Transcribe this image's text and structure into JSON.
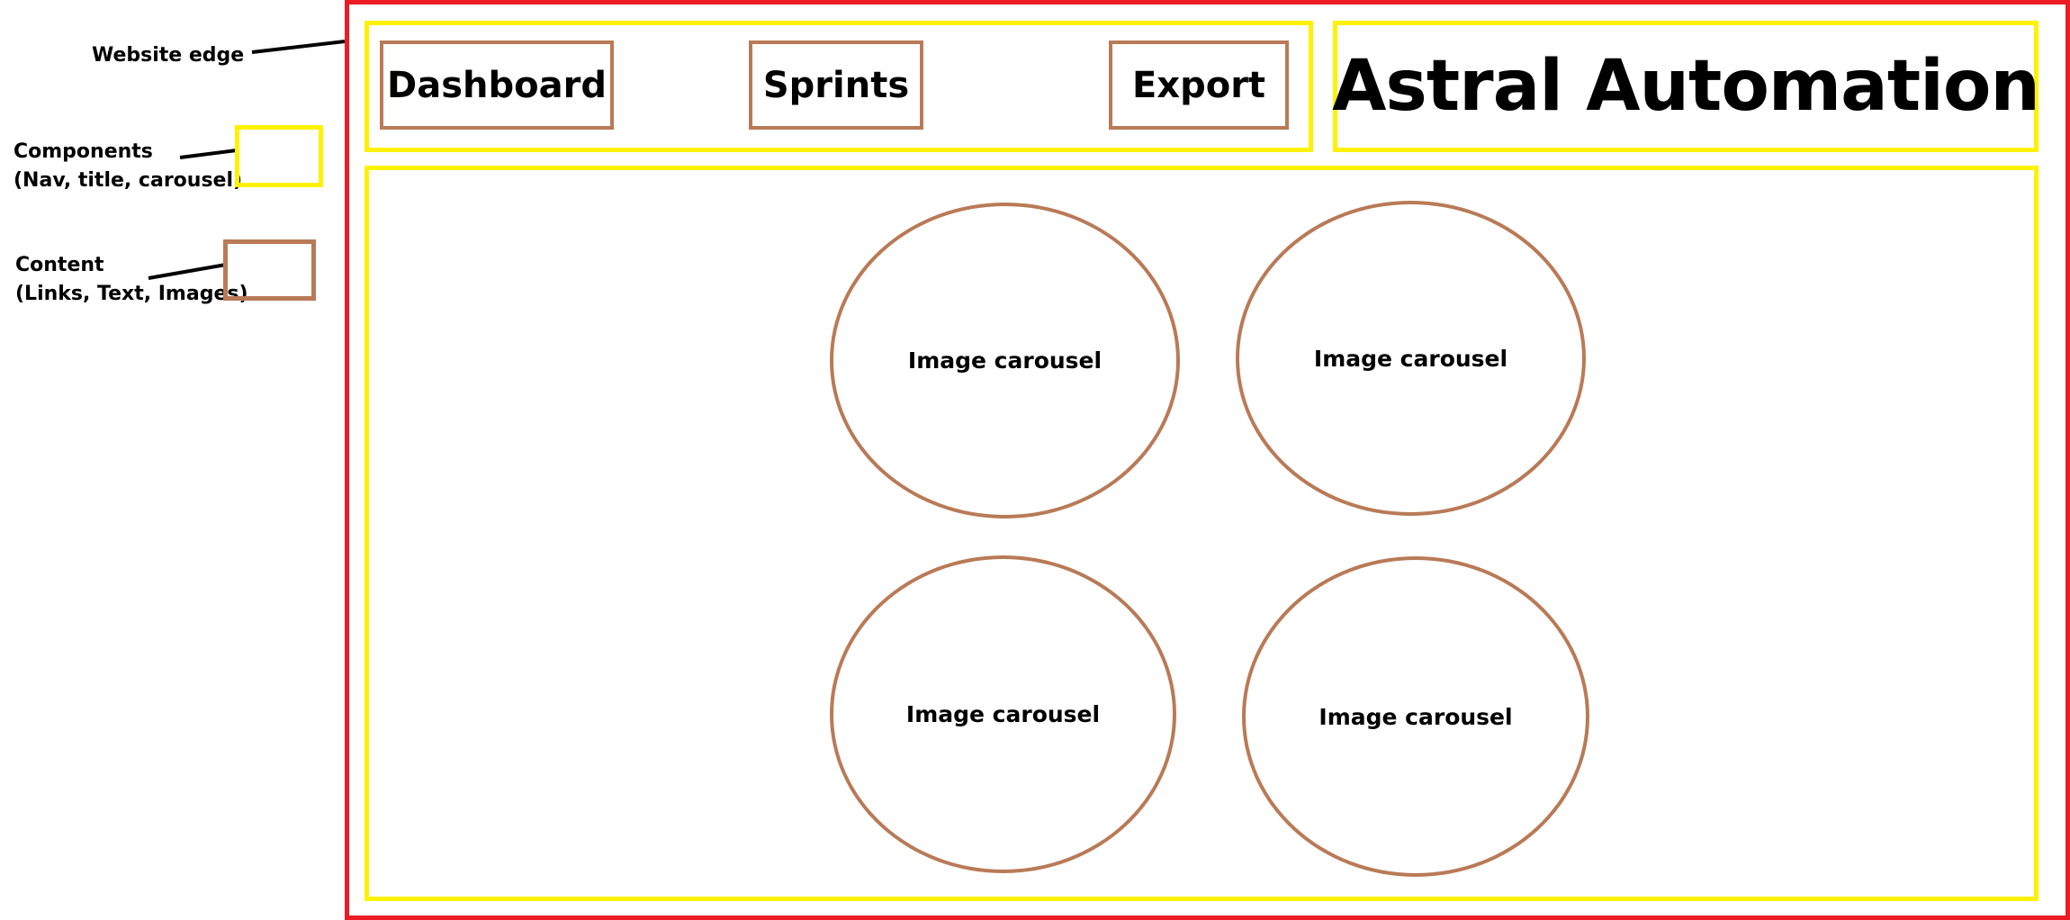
{
  "legend": {
    "website_edge": "Website edge",
    "components_line1": "Components",
    "components_line2": "(Nav, title, carousel)",
    "content_line1": "Content",
    "content_line2": "(Links, Text, Images)"
  },
  "nav": {
    "items": [
      {
        "label": "Dashboard"
      },
      {
        "label": "Sprints"
      },
      {
        "label": "Export"
      }
    ]
  },
  "title": "Astral Automation",
  "carousels": [
    {
      "label": "Image carousel"
    },
    {
      "label": "Image carousel"
    },
    {
      "label": "Image carousel"
    },
    {
      "label": "Image carousel"
    }
  ],
  "colors": {
    "website_edge": "#ed1c24",
    "component": "#fff200",
    "content": "#b97a57"
  }
}
